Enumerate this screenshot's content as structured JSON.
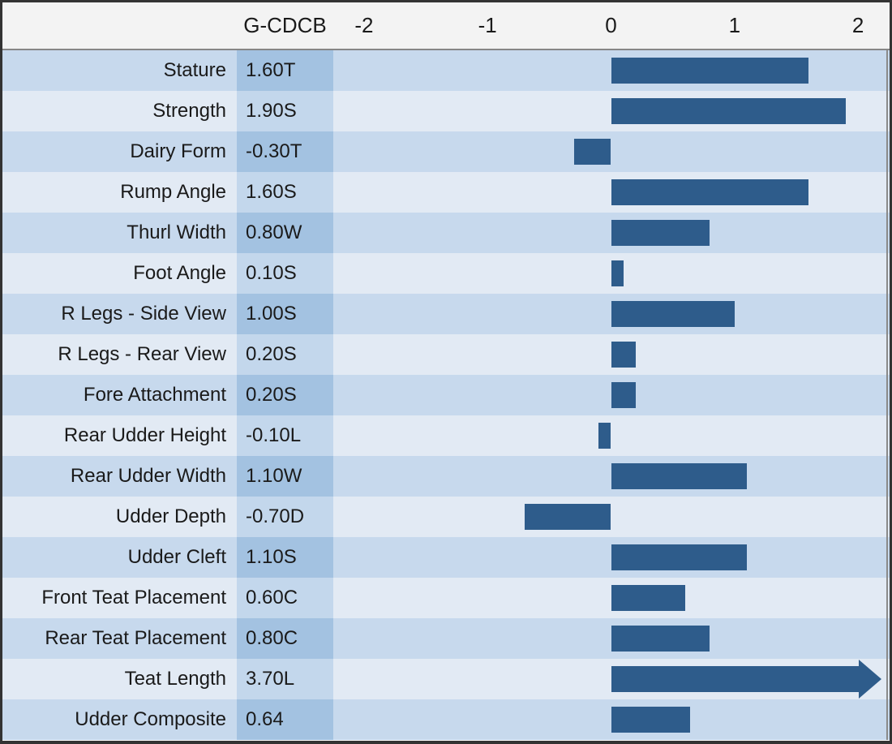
{
  "header": {
    "column_label": "G-CDCB",
    "ticks": [
      "-2",
      "-1",
      "0",
      "1",
      "2"
    ],
    "tick_values": [
      -2,
      -1,
      0,
      1,
      2
    ]
  },
  "rows": [
    {
      "trait": "Stature",
      "value_label": "1.60T",
      "value": 1.6,
      "overflow": false
    },
    {
      "trait": "Strength",
      "value_label": "1.90S",
      "value": 1.9,
      "overflow": false
    },
    {
      "trait": "Dairy Form",
      "value_label": "-0.30T",
      "value": -0.3,
      "overflow": false
    },
    {
      "trait": "Rump Angle",
      "value_label": "1.60S",
      "value": 1.6,
      "overflow": false
    },
    {
      "trait": "Thurl Width",
      "value_label": "0.80W",
      "value": 0.8,
      "overflow": false
    },
    {
      "trait": "Foot Angle",
      "value_label": "0.10S",
      "value": 0.1,
      "overflow": false
    },
    {
      "trait": "R Legs - Side View",
      "value_label": "1.00S",
      "value": 1.0,
      "overflow": false
    },
    {
      "trait": "R Legs - Rear View",
      "value_label": "0.20S",
      "value": 0.2,
      "overflow": false
    },
    {
      "trait": "Fore Attachment",
      "value_label": "0.20S",
      "value": 0.2,
      "overflow": false
    },
    {
      "trait": "Rear Udder Height",
      "value_label": "-0.10L",
      "value": -0.1,
      "overflow": false
    },
    {
      "trait": "Rear Udder Width",
      "value_label": "1.10W",
      "value": 1.1,
      "overflow": false
    },
    {
      "trait": "Udder Depth",
      "value_label": "-0.70D",
      "value": -0.7,
      "overflow": false
    },
    {
      "trait": "Udder Cleft",
      "value_label": "1.10S",
      "value": 1.1,
      "overflow": false
    },
    {
      "trait": "Front Teat Placement",
      "value_label": "0.60C",
      "value": 0.6,
      "overflow": false
    },
    {
      "trait": "Rear Teat Placement",
      "value_label": "0.80C",
      "value": 0.8,
      "overflow": false
    },
    {
      "trait": "Teat Length",
      "value_label": "3.70L",
      "value": 3.7,
      "overflow": true
    },
    {
      "trait": "Udder Composite",
      "value_label": "0.64",
      "value": 0.64,
      "overflow": false
    }
  ],
  "colors": {
    "bar": "#2e5c8b",
    "row_odd": "#c7d9ed",
    "row_even": "#e2eaf4",
    "value_cell_odd": "#a3c2e1",
    "value_cell_even": "#c3d7ec",
    "header_bg": "#f3f3f3",
    "gridline": "#cdccc9",
    "border": "#333333",
    "text": "#1a1a1a"
  },
  "chart_data": {
    "type": "bar",
    "orientation": "horizontal",
    "title": "",
    "column_header": "G-CDCB",
    "categories": [
      "Stature",
      "Strength",
      "Dairy Form",
      "Rump Angle",
      "Thurl Width",
      "Foot Angle",
      "R Legs - Side View",
      "R Legs - Rear View",
      "Fore Attachment",
      "Rear Udder Height",
      "Rear Udder Width",
      "Udder Depth",
      "Udder Cleft",
      "Front Teat Placement",
      "Rear Teat Placement",
      "Teat Length",
      "Udder Composite"
    ],
    "values": [
      1.6,
      1.9,
      -0.3,
      1.6,
      0.8,
      0.1,
      1.0,
      0.2,
      0.2,
      -0.1,
      1.1,
      -0.7,
      1.1,
      0.6,
      0.8,
      3.7,
      0.64
    ],
    "value_labels": [
      "1.60T",
      "1.90S",
      "-0.30T",
      "1.60S",
      "0.80W",
      "0.10S",
      "1.00S",
      "0.20S",
      "0.20S",
      "-0.10L",
      "1.10W",
      "-0.70D",
      "1.10S",
      "0.60C",
      "0.80C",
      "3.70L",
      "0.64"
    ],
    "xlabel": "",
    "ylabel": "",
    "xlim": [
      -2.25,
      2.25
    ],
    "xticks": [
      -2,
      -1,
      0,
      1,
      2
    ],
    "gridlines_at": [
      -1,
      0,
      1
    ],
    "grid": true,
    "legend": false,
    "notes": "Teat Length (3.70L) exceeds the axis maximum and is drawn as a right-pointing arrow bar; rows alternate light/dark blue banding"
  }
}
